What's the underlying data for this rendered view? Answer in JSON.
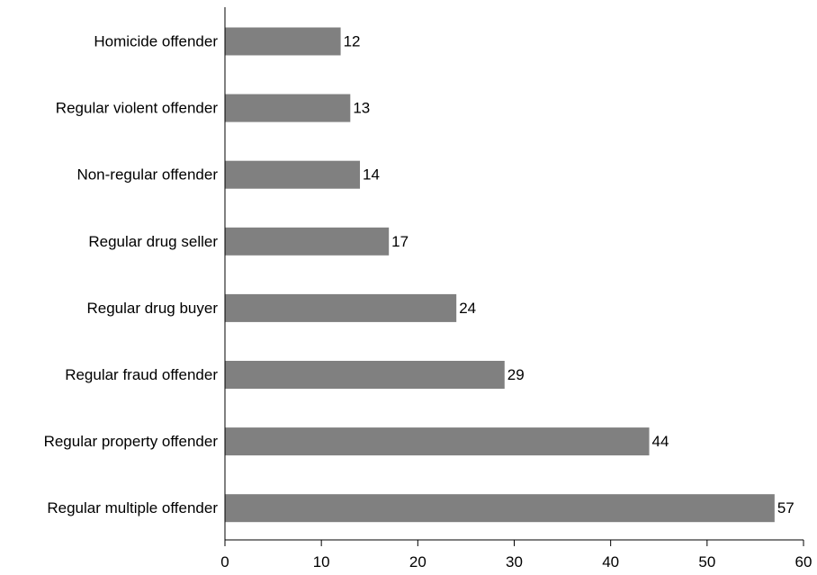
{
  "chart_data": {
    "type": "bar",
    "orientation": "horizontal",
    "title": "",
    "xlabel": "",
    "ylabel": "",
    "categories": [
      "Homicide offender",
      "Regular violent offender",
      "Non-regular offender",
      "Regular drug seller",
      "Regular drug buyer",
      "Regular fraud offender",
      "Regular property offender",
      "Regular multiple offender"
    ],
    "values": [
      12,
      13,
      14,
      17,
      24,
      29,
      44,
      57
    ],
    "xlim": [
      0,
      60
    ],
    "xticks": [
      0,
      10,
      20,
      30,
      40,
      50,
      60
    ],
    "data_labels": true,
    "grid": false,
    "legend": "none",
    "bar_color": "#808080",
    "axis_color": "#000000"
  }
}
